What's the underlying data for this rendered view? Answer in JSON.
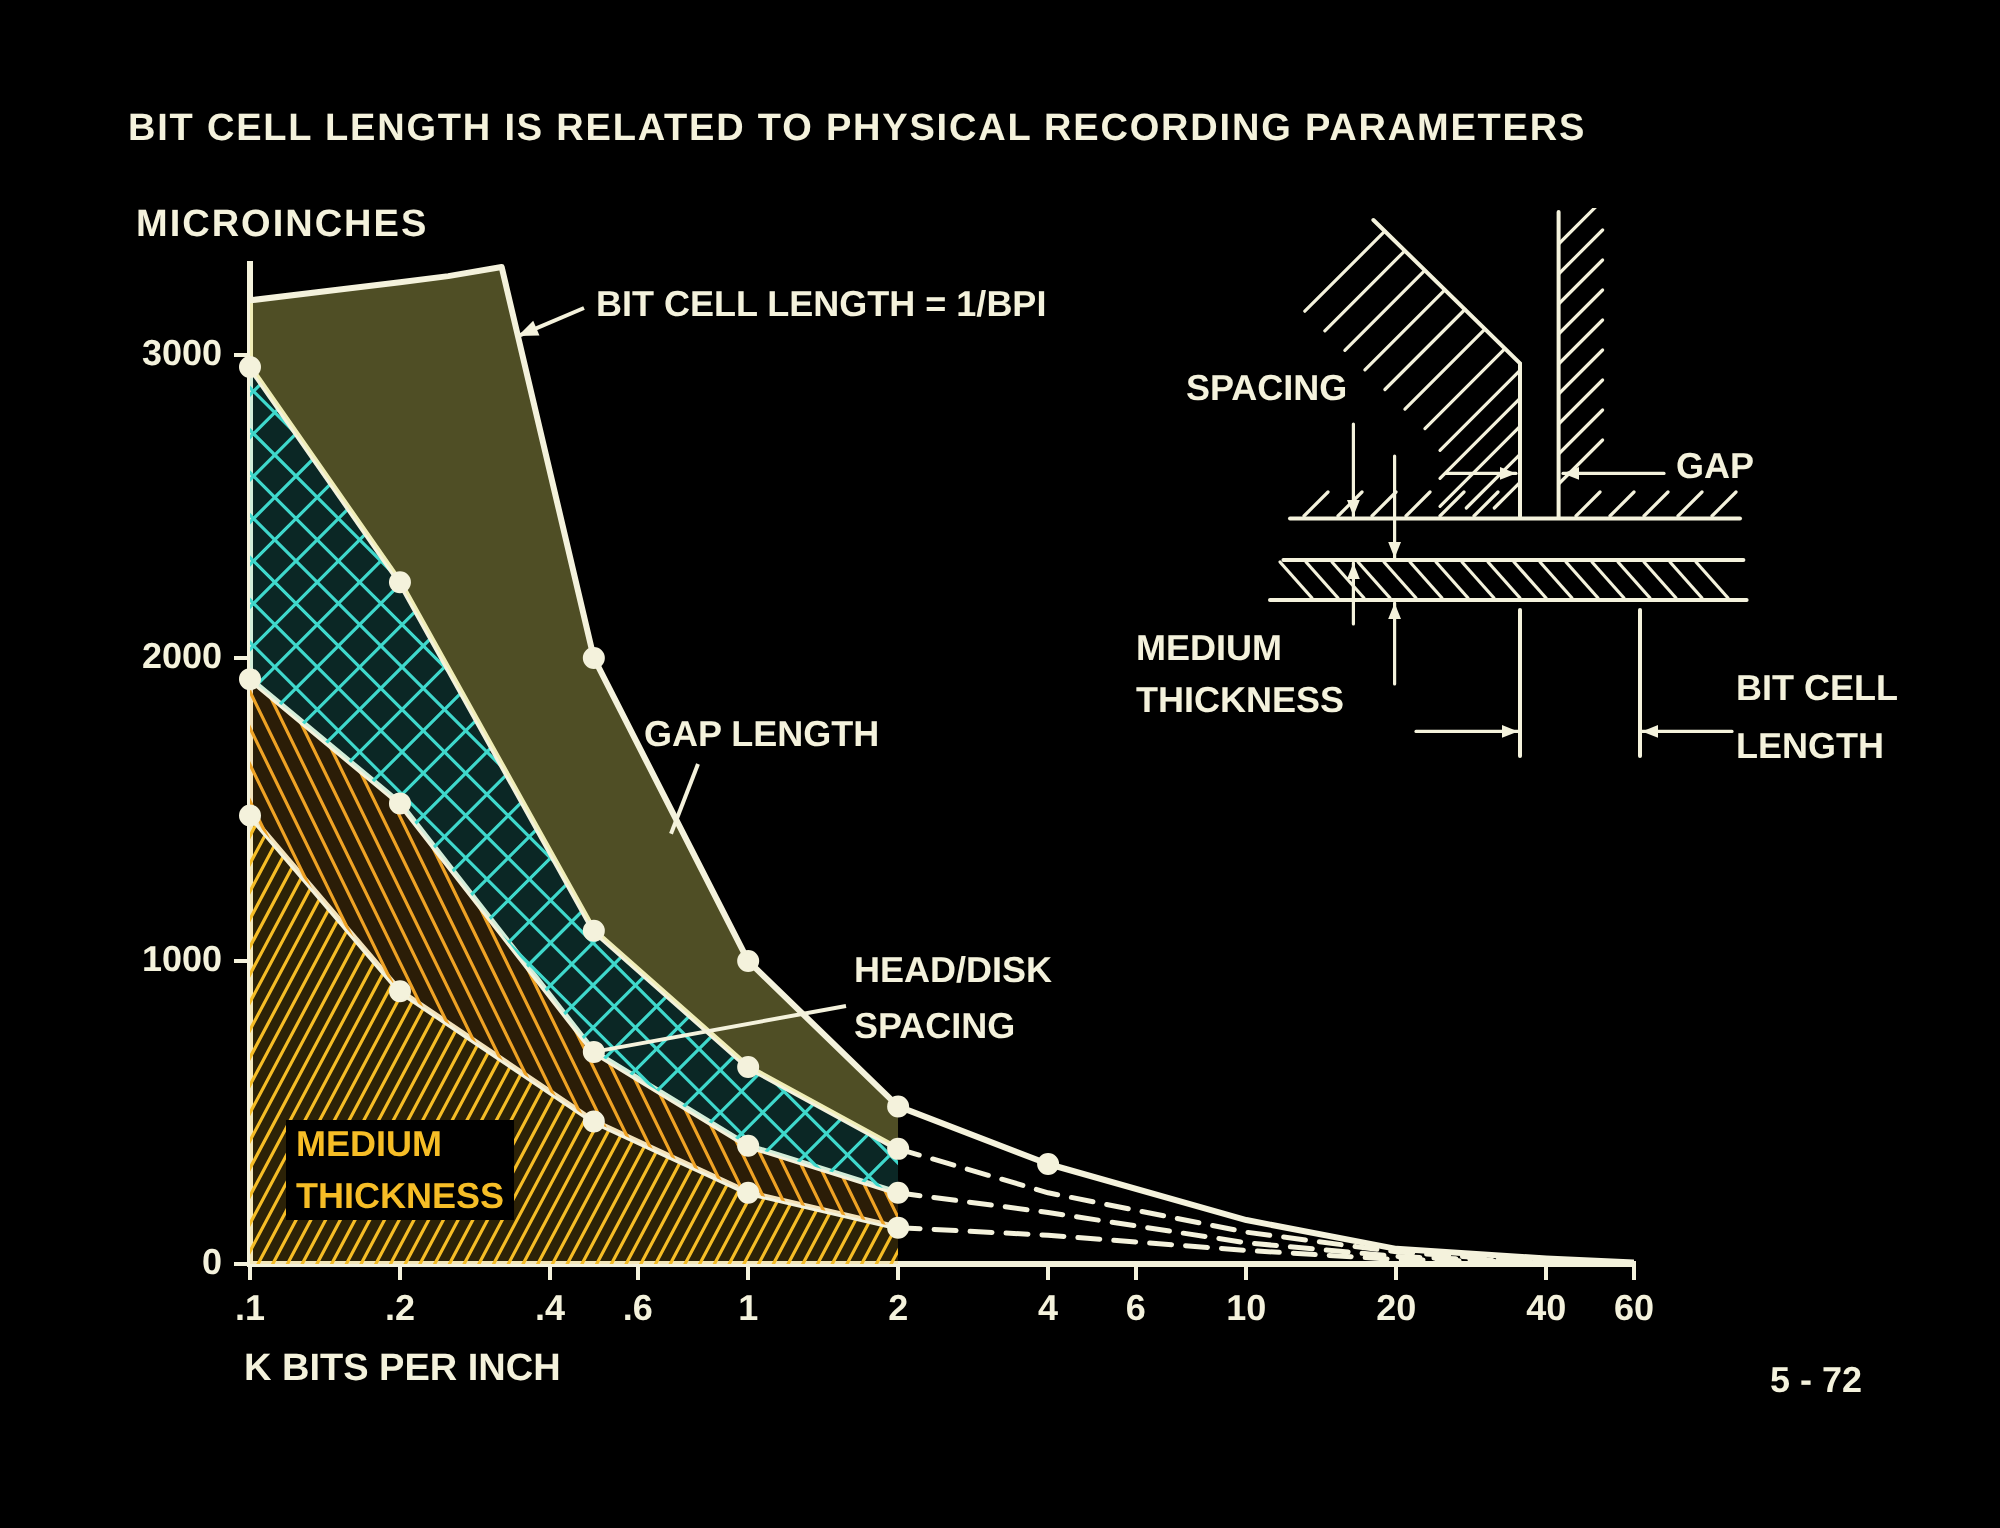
{
  "chart_data": {
    "type": "area",
    "title": "BIT CELL LENGTH IS RELATED TO PHYSICAL RECORDING PARAMETERS",
    "xlabel": "K BITS PER INCH",
    "ylabel": "MICROINCHES",
    "log": "x",
    "xlim": [
      0.1,
      60
    ],
    "xticks": [
      {
        "value": 0.1,
        "label": ".1"
      },
      {
        "value": 0.2,
        "label": ".2"
      },
      {
        "value": 0.4,
        "label": ".4"
      },
      {
        "value": 0.6,
        "label": ".6"
      },
      1,
      2,
      4,
      6,
      10,
      20,
      40,
      60
    ],
    "ylim": [
      0,
      3300
    ],
    "yticks": [
      0,
      1000,
      2000,
      3000
    ],
    "line_style": "solid",
    "series": [
      {
        "name": "BIT CELL LENGTH = 1/BPI",
        "color": "#e8e46c",
        "x": [
          0.1,
          0.15,
          0.2,
          0.25,
          0.32,
          0.49,
          1,
          2
        ],
        "values": [
          3180,
          3215,
          3240,
          3260,
          3290,
          2000,
          1000,
          520
        ]
      },
      {
        "color": "#3fd8cc",
        "x": [
          0.1,
          0.2,
          0.49,
          1,
          2
        ],
        "values": [
          2960,
          2250,
          1100,
          650,
          380
        ]
      },
      {
        "color": "#eea225",
        "x": [
          0.1,
          0.2,
          0.49,
          1,
          2
        ],
        "values": [
          1930,
          1520,
          700,
          390,
          235
        ]
      },
      {
        "name": "MEDIUM THICKNESS",
        "color": "#f6bd26",
        "x": [
          0.1,
          0.2,
          0.49,
          1,
          2
        ],
        "values": [
          1480,
          900,
          470,
          235,
          120
        ]
      },
      {
        "type": "line",
        "color": "#f4f2dc",
        "x": [
          2,
          4,
          10,
          20,
          40,
          60
        ],
        "values": [
          520,
          330,
          145,
          50,
          18,
          5
        ]
      },
      {
        "type": "line",
        "line_style": "dashed",
        "color": "#f4f2dc",
        "x": [
          2,
          4,
          10,
          20,
          40
        ],
        "values": [
          380,
          235,
          105,
          40,
          5
        ]
      },
      {
        "type": "line",
        "line_style": "dashed",
        "color": "#f4f2dc",
        "x": [
          2,
          4,
          10,
          20,
          40
        ],
        "values": [
          235,
          170,
          70,
          25,
          5
        ]
      },
      {
        "type": "line",
        "line_style": "dashed",
        "color": "#f4f2dc",
        "x": [
          2,
          4,
          10,
          20,
          40
        ],
        "values": [
          120,
          95,
          45,
          15,
          5
        ]
      },
      {
        "type": "scatter",
        "marker": "circle",
        "color": "#f4f2dc",
        "x": [
          0.1,
          0.1,
          0.1,
          0.2,
          0.2,
          0.2,
          0.49,
          0.49,
          0.49,
          0.49,
          1,
          1,
          1,
          1,
          2,
          2,
          2,
          2,
          4
        ],
        "values": [
          2960,
          1930,
          1480,
          2250,
          1520,
          900,
          2000,
          1100,
          700,
          470,
          1000,
          650,
          390,
          235,
          520,
          380,
          235,
          120,
          330
        ]
      }
    ],
    "annotations": [
      {
        "text": "GAP LENGTH",
        "x": 0.7,
        "y": 1420
      },
      {
        "text": "HEAD/DISK SPACING",
        "x": 0.49,
        "y": 700
      },
      "SPACING",
      "GAP",
      "MEDIUM THICKNESS",
      "BIT CELL LENGTH",
      "5 - 72"
    ]
  }
}
